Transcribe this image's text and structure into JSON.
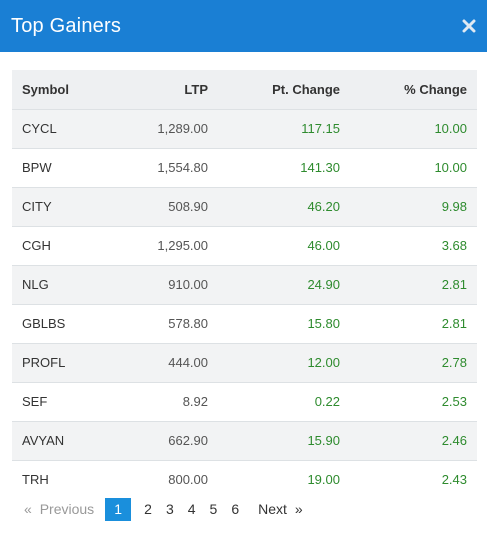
{
  "modal": {
    "title": "Top Gainers"
  },
  "table": {
    "headers": {
      "symbol": "Symbol",
      "ltp": "LTP",
      "pt_change": "Pt. Change",
      "pct_change": "% Change"
    },
    "rows": [
      {
        "symbol": "CYCL",
        "ltp": "1,289.00",
        "pt": "117.15",
        "pct": "10.00"
      },
      {
        "symbol": "BPW",
        "ltp": "1,554.80",
        "pt": "141.30",
        "pct": "10.00"
      },
      {
        "symbol": "CITY",
        "ltp": "508.90",
        "pt": "46.20",
        "pct": "9.98"
      },
      {
        "symbol": "CGH",
        "ltp": "1,295.00",
        "pt": "46.00",
        "pct": "3.68"
      },
      {
        "symbol": "NLG",
        "ltp": "910.00",
        "pt": "24.90",
        "pct": "2.81"
      },
      {
        "symbol": "GBLBS",
        "ltp": "578.80",
        "pt": "15.80",
        "pct": "2.81"
      },
      {
        "symbol": "PROFL",
        "ltp": "444.00",
        "pt": "12.00",
        "pct": "2.78"
      },
      {
        "symbol": "SEF",
        "ltp": "8.92",
        "pt": "0.22",
        "pct": "2.53"
      },
      {
        "symbol": "AVYAN",
        "ltp": "662.90",
        "pt": "15.90",
        "pct": "2.46"
      },
      {
        "symbol": "TRH",
        "ltp": "800.00",
        "pt": "19.00",
        "pct": "2.43"
      }
    ]
  },
  "pagination": {
    "prev_arrow": "«",
    "prev_label": "Previous",
    "pages": [
      "1",
      "2",
      "3",
      "4",
      "5",
      "6"
    ],
    "active_page": "1",
    "next_label": "Next",
    "next_arrow": "»"
  },
  "colors": {
    "header_bg": "#1a7fd4",
    "active_page_bg": "#1a8fdc",
    "gain_text": "#2e8b2e"
  },
  "icons": {
    "close": "close-icon"
  }
}
